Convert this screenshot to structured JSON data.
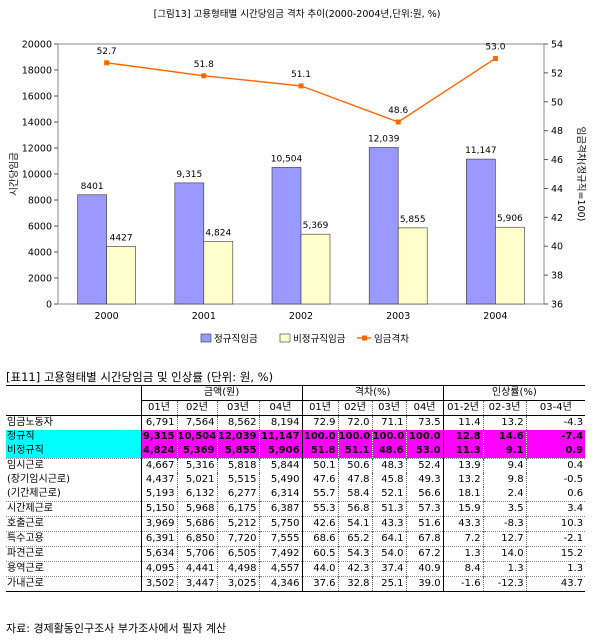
{
  "chart_data": {
    "type": "bar+line",
    "title": "[그림13] 고용형태별 시간당임금 격차 추이(2000-2004년,단위:원, %)",
    "categories": [
      "2000",
      "2001",
      "2002",
      "2003",
      "2004"
    ],
    "series": [
      {
        "name": "정규직임금",
        "type": "bar",
        "color": "#9999ff",
        "axis": "left",
        "values": [
          8401,
          9315,
          10504,
          12039,
          11147
        ],
        "labels": [
          "8401",
          "9,315",
          "10,504",
          "12,039",
          "11,147"
        ]
      },
      {
        "name": "비정규직임금",
        "type": "bar",
        "color": "#ffffcc",
        "axis": "left",
        "values": [
          4427,
          4824,
          5369,
          5855,
          5906
        ],
        "labels": [
          "4427",
          "4,824",
          "5,369",
          "5,855",
          "5,906"
        ]
      },
      {
        "name": "임금격차",
        "type": "line",
        "color": "#ff6600",
        "axis": "right",
        "values": [
          52.7,
          51.8,
          51.1,
          48.6,
          53.0
        ],
        "labels": [
          "52.7",
          "51.8",
          "51.1",
          "48.6",
          "53.0"
        ]
      }
    ],
    "ylabel": "시간당임금",
    "y2label": "임금격차(정규직=100)",
    "ylim": [
      0,
      20000
    ],
    "y2lim": [
      36,
      54
    ],
    "yticks": [
      "0",
      "2000",
      "4000",
      "6000",
      "8000",
      "10000",
      "12000",
      "14000",
      "16000",
      "18000",
      "20000"
    ],
    "y2ticks": [
      "36",
      "38",
      "40",
      "42",
      "44",
      "46",
      "48",
      "50",
      "52",
      "54"
    ],
    "grid": false,
    "legend": "bottom"
  },
  "table": {
    "title": "[표11] 고용형태별 시간당임금 및 인상률 (단위: 원, %)",
    "groups": [
      "금액(원)",
      "격차(%)",
      "인상률(%)"
    ],
    "subheaders": [
      "01년",
      "02년",
      "03년",
      "04년",
      "01년",
      "02년",
      "03년",
      "04년",
      "01-2년",
      "02-3년",
      "03-4년"
    ],
    "rows": [
      {
        "label": "임금노동자",
        "values": [
          "6,791",
          "7,564",
          "8,562",
          "8,194",
          "72.9",
          "72.0",
          "71.1",
          "73.5",
          "11.4",
          "13.2",
          "-4.3"
        ]
      },
      {
        "label": "정규직",
        "values": [
          "9,315",
          "10,504",
          "12,039",
          "11,147",
          "100.0",
          "100.0",
          "100.0",
          "100.0",
          "12.8",
          "14.6",
          "-7.4"
        ]
      },
      {
        "label": "비정규직",
        "values": [
          "4,824",
          "5,369",
          "5,855",
          "5,906",
          "51.8",
          "51.1",
          "48.6",
          "53.0",
          "11.3",
          "9.1",
          "0.9"
        ]
      },
      {
        "label": "임시근로",
        "values": [
          "4,667",
          "5,316",
          "5,818",
          "5,844",
          "50.1",
          "50.6",
          "48.3",
          "52.4",
          "13.9",
          "9.4",
          "0.4"
        ]
      },
      {
        "label": "(장기임시근로)",
        "values": [
          "4,437",
          "5,021",
          "5,515",
          "5,490",
          "47.6",
          "47.8",
          "45.8",
          "49.3",
          "13.2",
          "9.8",
          "-0.5"
        ]
      },
      {
        "label": "(기간제근로)",
        "values": [
          "5,193",
          "6,132",
          "6,277",
          "6,314",
          "55.7",
          "58.4",
          "52.1",
          "56.6",
          "18.1",
          "2.4",
          "0.6"
        ]
      },
      {
        "label": "시간제근로",
        "values": [
          "5,150",
          "5,968",
          "6,175",
          "6,387",
          "55.3",
          "56.8",
          "51.3",
          "57.3",
          "15.9",
          "3.5",
          "3.4"
        ]
      },
      {
        "label": "호출근로",
        "values": [
          "3,969",
          "5,686",
          "5,212",
          "5,750",
          "42.6",
          "54.1",
          "43.3",
          "51.6",
          "43.3",
          "-8.3",
          "10.3"
        ]
      },
      {
        "label": "특수고용",
        "values": [
          "6,391",
          "6,850",
          "7,720",
          "7,555",
          "68.6",
          "65.2",
          "64.1",
          "67.8",
          "7.2",
          "12.7",
          "-2.1"
        ]
      },
      {
        "label": "파견근로",
        "values": [
          "5,634",
          "5,706",
          "6,505",
          "7,492",
          "60.5",
          "54.3",
          "54.0",
          "67.2",
          "1.3",
          "14.0",
          "15.2"
        ]
      },
      {
        "label": "용역근로",
        "values": [
          "4,095",
          "4,441",
          "4,498",
          "4,557",
          "44.0",
          "42.3",
          "37.4",
          "40.9",
          "8.4",
          "1.3",
          "1.3"
        ]
      },
      {
        "label": "가내근로",
        "values": [
          "3,502",
          "3,447",
          "3,025",
          "4,346",
          "37.6",
          "32.8",
          "25.1",
          "39.0",
          "-1.6",
          "-12.3",
          "43.7"
        ]
      }
    ],
    "source": "자료: 경제활동인구조사 부가조사에서 필자 계산"
  }
}
